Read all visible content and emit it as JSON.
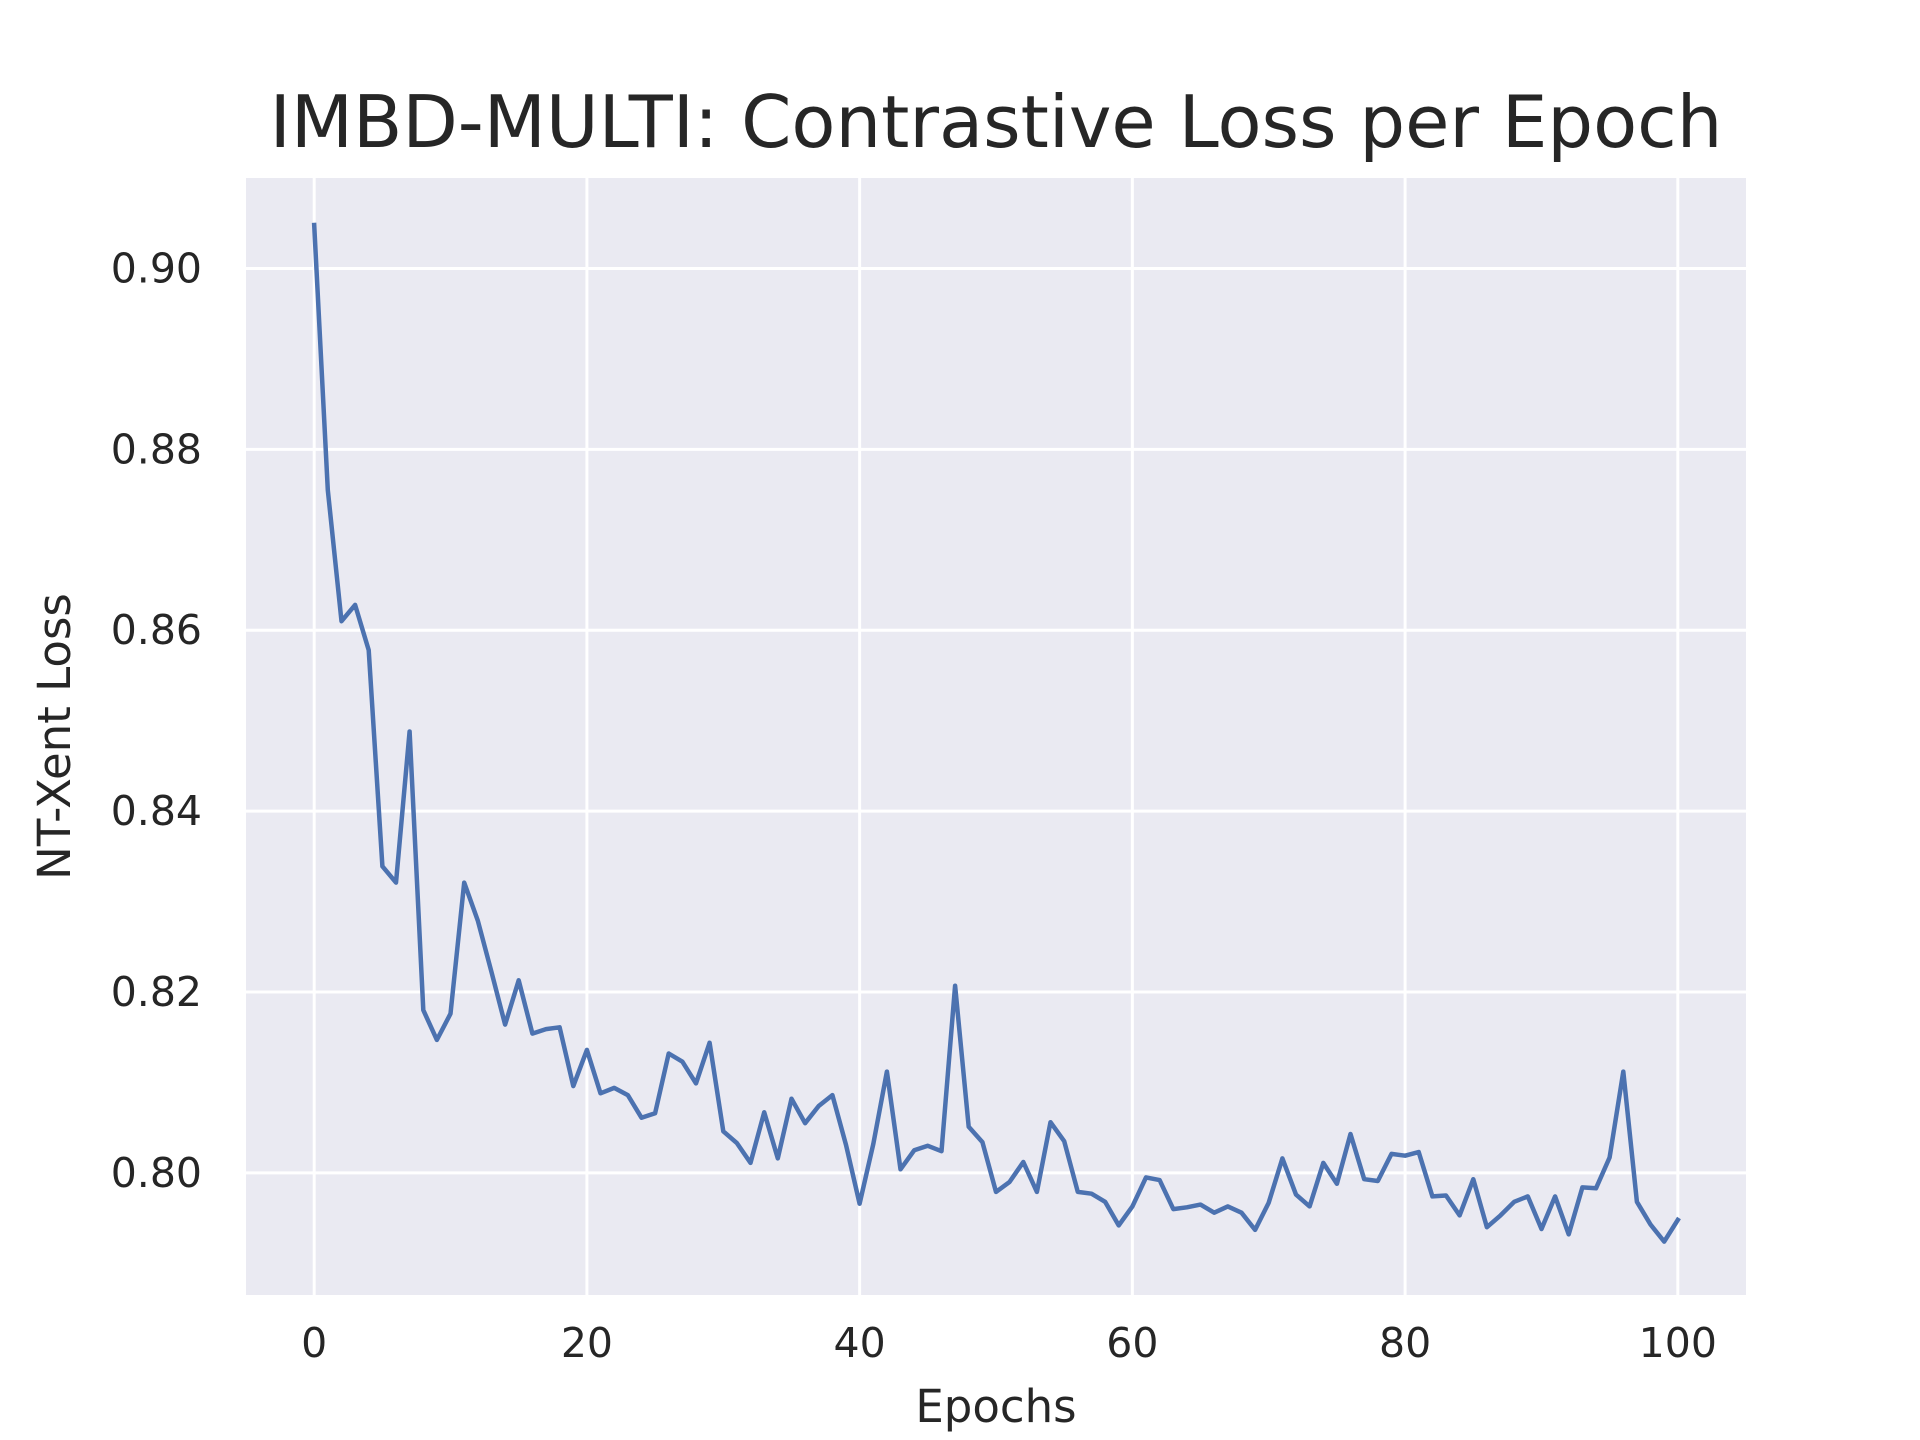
{
  "chart_data": {
    "type": "line",
    "title": "IMBD-MULTI: Contrastive Loss per Epoch",
    "xlabel": "Epochs",
    "ylabel": "NT-Xent Loss",
    "xlim": [
      -5,
      105
    ],
    "ylim": [
      0.7865,
      0.91
    ],
    "xticks": [
      0,
      20,
      40,
      60,
      80,
      100
    ],
    "xtick_labels": [
      "0",
      "20",
      "40",
      "60",
      "80",
      "100"
    ],
    "yticks": [
      0.8,
      0.82,
      0.84,
      0.86,
      0.88,
      0.9
    ],
    "ytick_labels": [
      "0.80",
      "0.82",
      "0.84",
      "0.86",
      "0.88",
      "0.90"
    ],
    "grid": true,
    "background_color": "#EAEAF2",
    "grid_color": "#FFFFFF",
    "series": [
      {
        "color": "#4C72B0",
        "x": [
          0,
          1,
          2,
          3,
          4,
          5,
          6,
          7,
          8,
          9,
          10,
          11,
          12,
          13,
          14,
          15,
          16,
          17,
          18,
          19,
          20,
          21,
          22,
          23,
          24,
          25,
          26,
          27,
          28,
          29,
          30,
          31,
          32,
          33,
          34,
          35,
          36,
          37,
          38,
          39,
          40,
          41,
          42,
          43,
          44,
          45,
          46,
          47,
          48,
          49,
          50,
          51,
          52,
          53,
          54,
          55,
          56,
          57,
          58,
          59,
          60,
          61,
          62,
          63,
          64,
          65,
          66,
          67,
          68,
          69,
          70,
          71,
          72,
          73,
          74,
          75,
          76,
          77,
          78,
          79,
          80,
          81,
          82,
          83,
          84,
          85,
          86,
          87,
          88,
          89,
          90,
          91,
          92,
          93,
          94,
          95,
          96,
          97,
          98,
          99,
          100
        ],
        "y": [
          0.9048,
          0.8755,
          0.861,
          0.8628,
          0.8578,
          0.8339,
          0.8321,
          0.8488,
          0.818,
          0.8147,
          0.8176,
          0.8321,
          0.8279,
          0.8222,
          0.8164,
          0.8213,
          0.8154,
          0.8159,
          0.8161,
          0.8096,
          0.8136,
          0.8088,
          0.8094,
          0.8086,
          0.8061,
          0.8066,
          0.8132,
          0.8123,
          0.8099,
          0.8144,
          0.8046,
          0.8033,
          0.8011,
          0.8067,
          0.8016,
          0.8082,
          0.8055,
          0.8074,
          0.8086,
          0.8031,
          0.7966,
          0.8032,
          0.8112,
          0.8004,
          0.8025,
          0.803,
          0.8024,
          0.8207,
          0.8051,
          0.8034,
          0.7979,
          0.799,
          0.8012,
          0.7979,
          0.8056,
          0.8035,
          0.7979,
          0.7977,
          0.7968,
          0.7942,
          0.7963,
          0.7995,
          0.7992,
          0.796,
          0.7962,
          0.7965,
          0.7956,
          0.7963,
          0.7956,
          0.7937,
          0.7967,
          0.8016,
          0.7976,
          0.7963,
          0.8011,
          0.7988,
          0.8043,
          0.7993,
          0.7991,
          0.8021,
          0.8019,
          0.8023,
          0.7974,
          0.7975,
          0.7953,
          0.7993,
          0.794,
          0.7953,
          0.7968,
          0.7974,
          0.7938,
          0.7974,
          0.7932,
          0.7984,
          0.7983,
          0.8017,
          0.8112,
          0.7968,
          0.7943,
          0.7924,
          0.7948
        ]
      }
    ]
  }
}
